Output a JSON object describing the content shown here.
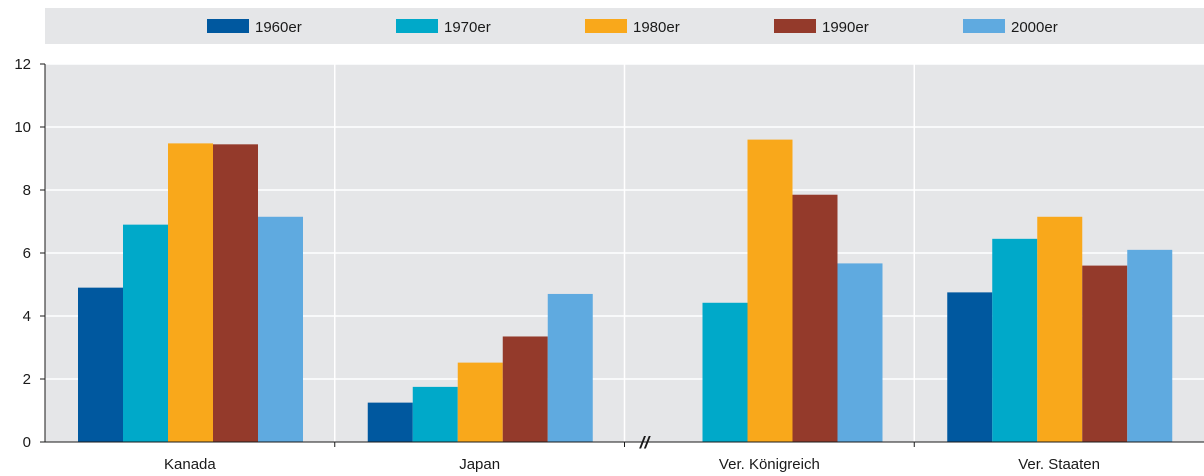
{
  "chart_data": {
    "type": "bar",
    "title": "",
    "xlabel": "",
    "ylabel": "",
    "categories": [
      "Kanada",
      "Japan",
      "Ver. Königreich",
      "Ver. Staaten"
    ],
    "series": [
      {
        "name": "1960er",
        "color": "#00589f",
        "values": [
          4.9,
          1.25,
          null,
          4.75
        ]
      },
      {
        "name": "1970er",
        "color": "#00a9c9",
        "values": [
          6.9,
          1.75,
          4.42,
          6.45
        ]
      },
      {
        "name": "1980er",
        "color": "#f9a81b",
        "values": [
          9.48,
          2.52,
          9.6,
          7.15
        ]
      },
      {
        "name": "1990er",
        "color": "#943a2b",
        "values": [
          9.45,
          3.35,
          7.85,
          5.6
        ]
      },
      {
        "name": "2000er",
        "color": "#5faae0",
        "values": [
          7.15,
          4.7,
          5.67,
          6.1
        ]
      }
    ],
    "ylim": [
      0,
      12
    ],
    "yticks": [
      "0",
      "2",
      "4",
      "6",
      "8",
      "10",
      "12"
    ],
    "axis_break_marker": "//",
    "grid": true,
    "legend_position": "top",
    "background_color": "#e5e6e8",
    "gridline_color": "#ffffff"
  }
}
